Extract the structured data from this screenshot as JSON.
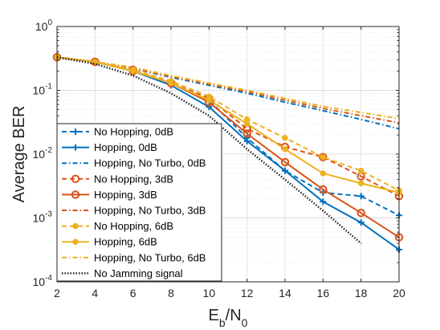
{
  "chart_data": {
    "type": "line",
    "xlabel": {
      "main": "E",
      "sub1": "b",
      "mid": "/N",
      "sub2": "0"
    },
    "ylabel": "Average BER",
    "xlim": [
      2,
      20
    ],
    "ylim": [
      0.0001,
      1
    ],
    "yscale": "log",
    "x_ticks": [
      "2",
      "4",
      "6",
      "8",
      "10",
      "12",
      "14",
      "16",
      "18",
      "20"
    ],
    "y_ticks": [
      {
        "value": 1,
        "base": "10",
        "exp": "0"
      },
      {
        "value": 0.1,
        "base": "10",
        "exp": "-1"
      },
      {
        "value": 0.01,
        "base": "10",
        "exp": "-2"
      },
      {
        "value": 0.001,
        "base": "10",
        "exp": "-3"
      },
      {
        "value": 0.0001,
        "base": "10",
        "exp": "-4"
      }
    ],
    "grid": true,
    "legend_position": "bottom-left",
    "series": [
      {
        "name": "No Hopping, 0dB",
        "color": "#0072bd",
        "dash": "dashed",
        "marker": "plus",
        "x": [
          2,
          4,
          6,
          8,
          10,
          12,
          14,
          16,
          18,
          20
        ],
        "y": [
          0.33,
          0.28,
          0.2,
          0.13,
          0.07,
          0.018,
          0.0055,
          0.0025,
          0.0022,
          0.0011
        ]
      },
      {
        "name": "Hopping, 0dB",
        "color": "#0072bd",
        "dash": "solid",
        "marker": "plus",
        "x": [
          2,
          4,
          6,
          8,
          10,
          12,
          14,
          16,
          18,
          20
        ],
        "y": [
          0.33,
          0.28,
          0.2,
          0.12,
          0.055,
          0.016,
          0.0055,
          0.0018,
          0.00085,
          0.00032
        ]
      },
      {
        "name": "Hopping, No Turbo, 0dB",
        "color": "#0072bd",
        "dash": "dashdot",
        "marker": "none",
        "x": [
          2,
          4,
          6,
          8,
          10,
          12,
          14,
          16,
          18,
          20
        ],
        "y": [
          0.33,
          0.28,
          0.22,
          0.16,
          0.12,
          0.09,
          0.065,
          0.048,
          0.035,
          0.025
        ]
      },
      {
        "name": "No Hopping, 3dB",
        "color": "#d95319",
        "dash": "dashed",
        "marker": "circle",
        "x": [
          2,
          4,
          6,
          8,
          10,
          12,
          14,
          16,
          18,
          20
        ],
        "y": [
          0.33,
          0.28,
          0.21,
          0.13,
          0.075,
          0.025,
          0.013,
          0.009,
          0.0045,
          0.0022
        ]
      },
      {
        "name": "Hopping, 3dB",
        "color": "#d95319",
        "dash": "solid",
        "marker": "circle",
        "x": [
          2,
          4,
          6,
          8,
          10,
          12,
          14,
          16,
          18,
          20
        ],
        "y": [
          0.33,
          0.28,
          0.2,
          0.13,
          0.065,
          0.021,
          0.0075,
          0.0028,
          0.0012,
          0.0005
        ]
      },
      {
        "name": "Hopping, No Turbo, 3dB",
        "color": "#d95319",
        "dash": "dashdot",
        "marker": "none",
        "x": [
          2,
          4,
          6,
          8,
          10,
          12,
          14,
          16,
          18,
          20
        ],
        "y": [
          0.33,
          0.28,
          0.22,
          0.165,
          0.125,
          0.095,
          0.07,
          0.052,
          0.04,
          0.031
        ]
      },
      {
        "name": "No Hopping, 6dB",
        "color": "#edb120",
        "dash": "dashed",
        "marker": "dot",
        "x": [
          2,
          4,
          6,
          8,
          10,
          12,
          14,
          16,
          18,
          20
        ],
        "y": [
          0.33,
          0.28,
          0.21,
          0.14,
          0.08,
          0.035,
          0.018,
          0.009,
          0.0055,
          0.0027
        ]
      },
      {
        "name": "Hopping, 6dB",
        "color": "#edb120",
        "dash": "solid",
        "marker": "dot",
        "x": [
          2,
          4,
          6,
          8,
          10,
          12,
          14,
          16,
          18,
          20
        ],
        "y": [
          0.33,
          0.28,
          0.2,
          0.13,
          0.07,
          0.03,
          0.012,
          0.005,
          0.0035,
          0.0025
        ]
      },
      {
        "name": "Hopping, No Turbo, 6dB",
        "color": "#edb120",
        "dash": "dashdot",
        "marker": "none",
        "x": [
          2,
          4,
          6,
          8,
          10,
          12,
          14,
          16,
          18,
          20
        ],
        "y": [
          0.33,
          0.28,
          0.23,
          0.17,
          0.13,
          0.1,
          0.075,
          0.056,
          0.045,
          0.036
        ]
      },
      {
        "name": "No Jamming signal",
        "color": "#262626",
        "dash": "dotted",
        "marker": "none",
        "x": [
          2,
          4,
          6,
          8,
          10,
          12,
          14,
          16,
          18
        ],
        "y": [
          0.33,
          0.26,
          0.17,
          0.09,
          0.04,
          0.012,
          0.004,
          0.0013,
          0.0004
        ]
      }
    ]
  }
}
